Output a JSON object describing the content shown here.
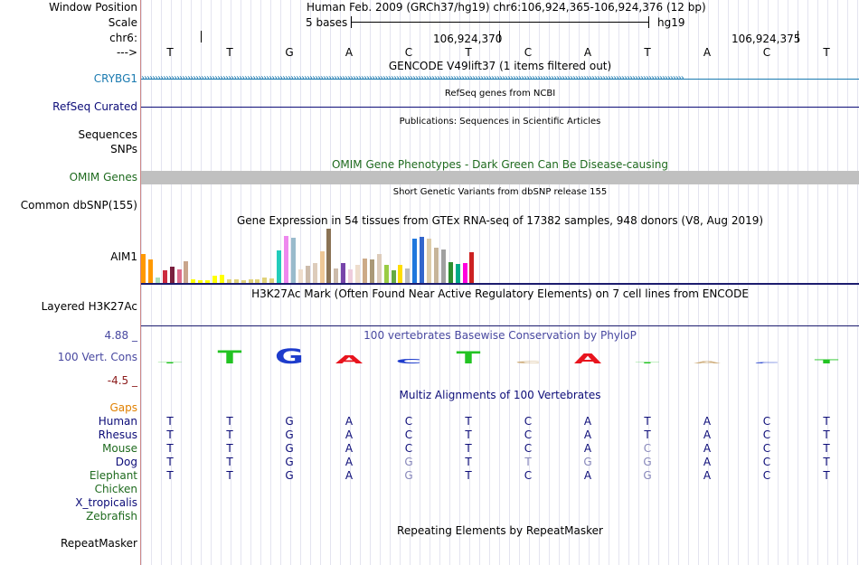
{
  "header": {
    "window_position_label": "Window Position",
    "position_text": "Human Feb. 2009 (GRCh37/hg19)   chr6:106,924,365-106,924,376 (12 bp)",
    "scale_label": "Scale",
    "scale_text": "5 bases",
    "assembly": "hg19",
    "chrom_label": "chr6:",
    "coord_1": "106,924,370",
    "coord_2": "106,924,375",
    "strand_label": "--->",
    "bases": [
      "T",
      "T",
      "G",
      "A",
      "C",
      "T",
      "C",
      "A",
      "T",
      "A",
      "C",
      "T"
    ]
  },
  "tracks": {
    "gencode": {
      "title": "GENCODE V49lift37 (1 items filtered out)",
      "gene": "CRYBG1",
      "gene_color": "#1a7ab0"
    },
    "refseq": {
      "title": "RefSeq genes from NCBI",
      "label": "RefSeq Curated",
      "color": "#0c0c78"
    },
    "publications": {
      "title": "Publications: Sequences in Scientific Articles",
      "label_1": "Sequences",
      "label_2": "SNPs"
    },
    "omim": {
      "title": "OMIM Gene Phenotypes - Dark Green Can Be Disease-causing",
      "label": "OMIM Genes",
      "color": "#1e6a1e"
    },
    "dbsnp": {
      "title": "Short Genetic Variants from dbSNP release 155",
      "label": "Common dbSNP(155)"
    },
    "gtex": {
      "title": "Gene Expression in 54 tissues from GTEx RNA-seq of 17382 samples, 948 donors (V8, Aug 2019)",
      "gene": "AIM1",
      "values": [
        32,
        26,
        6,
        14,
        18,
        15,
        24,
        4,
        3,
        3,
        8,
        9,
        4,
        4,
        3,
        4,
        4,
        6,
        5,
        36,
        52,
        50,
        15,
        19,
        22,
        35,
        60,
        16,
        22,
        15,
        20,
        27,
        26,
        32,
        20,
        14,
        20,
        16,
        49,
        51,
        49,
        39,
        37,
        23,
        21,
        22,
        34
      ],
      "colors": [
        "#ff9900",
        "#ff9900",
        "#aaddbb",
        "#cc2a3e",
        "#7a1f3e",
        "#dd6a8a",
        "#c9a58c",
        "#ffff00",
        "#ffff00",
        "#ffff00",
        "#ffff00",
        "#ffff00",
        "#e0d27a",
        "#e0d27a",
        "#e0d27a",
        "#e0d27a",
        "#e0d27a",
        "#e0d27a",
        "#e0d27a",
        "#22ccbb",
        "#ee88ee",
        "#99bbcc",
        "#eeddcc",
        "#ccbbaa",
        "#ddccbb",
        "#eec796",
        "#8b7355",
        "#ccbbaa",
        "#7744aa",
        "#eeccdd",
        "#eeddcc",
        "#ccaa88",
        "#aa9977",
        "#ddccbb",
        "#99cc44",
        "#66aa44",
        "#ffdd00",
        "#bbbbbb",
        "#1f77dd",
        "#3366cc",
        "#ddccaa",
        "#c6b49a",
        "#a0a0a0",
        "#2f8f2f",
        "#00aa88",
        "#ff00dd",
        "#cc2222"
      ]
    },
    "h3k27ac": {
      "title": "H3K27Ac Mark (Often Found Near Active Regulatory Elements) on 7 cell lines from ENCODE",
      "label": "Layered H3K27Ac",
      "color": "#1c1c6e"
    },
    "phylop": {
      "title": "100 vertebrates Basewise Conservation by PhyloP",
      "label": "100 Vert. Cons",
      "max": "4.88 _",
      "min": "-4.5 _",
      "letters": [
        "T",
        "T",
        "G",
        "A",
        "C",
        "T",
        "C",
        "A",
        "T",
        "A",
        "C",
        "T"
      ],
      "scores": [
        0.1,
        3.1,
        3.5,
        2.0,
        1.1,
        3.0,
        -0.6,
        2.4,
        0.0,
        -0.5,
        0.0,
        0.9
      ]
    },
    "multiz": {
      "title": "Multiz Alignments of 100 Vertebrates",
      "gaps_label": "Gaps",
      "species": [
        {
          "name": "Human",
          "seq": [
            "T",
            "T",
            "G",
            "A",
            "C",
            "T",
            "C",
            "A",
            "T",
            "A",
            "C",
            "T"
          ]
        },
        {
          "name": "Rhesus",
          "seq": [
            "T",
            "T",
            "G",
            "A",
            "C",
            "T",
            "C",
            "A",
            "T",
            "A",
            "C",
            "T"
          ]
        },
        {
          "name": "Mouse",
          "seq": [
            "T",
            "T",
            "G",
            "A",
            "C",
            "T",
            "C",
            "A",
            "C",
            "A",
            "C",
            "T"
          ]
        },
        {
          "name": "Dog",
          "seq": [
            "T",
            "T",
            "G",
            "A",
            "G",
            "T",
            "T",
            "G",
            "G",
            "A",
            "C",
            "T"
          ]
        },
        {
          "name": "Elephant",
          "seq": [
            "T",
            "T",
            "G",
            "A",
            "G",
            "T",
            "C",
            "A",
            "G",
            "A",
            "C",
            "T"
          ]
        },
        {
          "name": "Chicken",
          "seq": []
        },
        {
          "name": "X_tropicalis",
          "seq": []
        },
        {
          "name": "Zebrafish",
          "seq": []
        }
      ]
    },
    "repeatmasker": {
      "title": "Repeating Elements by RepeatMasker",
      "label": "RepeatMasker"
    }
  },
  "colors": {
    "blue_label": "#1a7ab0",
    "navy": "#0c0c78",
    "green": "#1e6a1e",
    "gaps": "#e08000",
    "phylop_label": "#4848a0",
    "phylop_min": "#8b1a1a"
  }
}
